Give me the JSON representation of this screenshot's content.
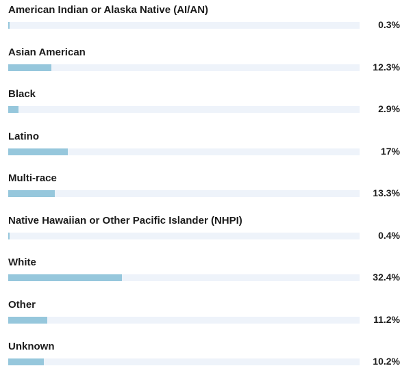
{
  "chart_data": {
    "type": "bar",
    "orientation": "horizontal",
    "categories": [
      "American Indian or Alaska Native (AI/AN)",
      "Asian American",
      "Black",
      "Latino",
      "Multi-race",
      "Native Hawaiian or Other Pacific Islander (NHPI)",
      "White",
      "Other",
      "Unknown"
    ],
    "values": [
      0.3,
      12.3,
      2.9,
      17,
      13.3,
      0.4,
      32.4,
      11.2,
      10.2
    ],
    "value_labels": [
      "0.3%",
      "12.3%",
      "2.9%",
      "17%",
      "13.3%",
      "0.4%",
      "32.4%",
      "11.2%",
      "10.2%"
    ],
    "xlim": [
      0,
      100
    ],
    "grid": false,
    "legend": "none",
    "colors": {
      "bar": "#96c7dc",
      "track": "#eef3fa",
      "text": "#1b1b1b"
    }
  }
}
